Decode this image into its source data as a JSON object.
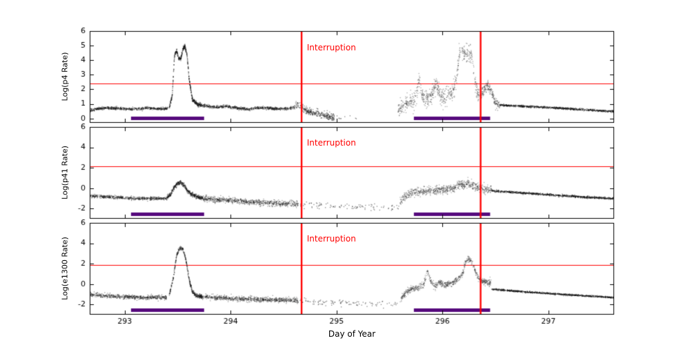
{
  "figure": {
    "xlabel": "Day of Year",
    "background": "#ffffff",
    "axis_color": "#000000",
    "point_color": "#0f0f0f",
    "accent_red": "#ff0000",
    "bar_color": "#560a7d"
  },
  "chart_data": [
    {
      "type": "scatter",
      "ylabel": "Log(p4 Rate)",
      "xlim": [
        292.67,
        297.62
      ],
      "ylim": [
        -0.3,
        6
      ],
      "xticks": [
        293,
        294,
        295,
        296,
        297
      ],
      "yticks": [
        0,
        1,
        2,
        3,
        4,
        5,
        6
      ],
      "hline": 2.4,
      "vlines": [
        294.67,
        296.36
      ],
      "annotation": {
        "text": "Interruption",
        "x": 294.72,
        "y": 4.8
      },
      "bars": [
        [
          293.06,
          293.75
        ],
        [
          295.73,
          296.45
        ]
      ],
      "series": [
        {
          "x": [
            292.67,
            292.74,
            292.82,
            292.9,
            292.98,
            293.06,
            293.14,
            293.22,
            293.3,
            293.38,
            293.42
          ],
          "y": [
            0.5,
            0.66,
            0.72,
            0.7,
            0.66,
            0.64,
            0.66,
            0.71,
            0.67,
            0.66,
            0.72
          ],
          "sigma": 0.045,
          "density": 2.5,
          "alpha": 0.5
        },
        {
          "x": [
            293.42,
            293.45,
            293.47,
            293.49,
            293.51,
            293.53,
            293.55,
            293.57,
            293.59,
            293.61,
            293.64,
            293.68,
            293.72
          ],
          "y": [
            0.75,
            1.6,
            4.3,
            4.65,
            4.15,
            4.05,
            4.8,
            4.95,
            4.3,
            2.6,
            1.3,
            1.0,
            0.9
          ],
          "sigma": 0.07,
          "density": 6,
          "alpha": 0.5
        },
        {
          "x": [
            293.72,
            293.84,
            293.96,
            294.06,
            294.16,
            294.26,
            294.36,
            294.46,
            294.56,
            294.6
          ],
          "y": [
            0.9,
            0.78,
            0.82,
            0.72,
            0.64,
            0.74,
            0.7,
            0.66,
            0.7,
            0.74
          ],
          "sigma": 0.05,
          "density": 2.5,
          "alpha": 0.5
        },
        {
          "x": [
            294.6,
            294.64,
            294.67,
            294.71,
            294.76,
            294.82,
            294.88,
            294.94,
            294.98
          ],
          "y": [
            0.76,
            0.95,
            0.85,
            0.55,
            0.42,
            0.35,
            0.22,
            0.1,
            0.04
          ],
          "sigma": 0.12,
          "density": 3,
          "alpha": 0.45
        },
        {
          "x": [
            295.0,
            295.2
          ],
          "y": [
            0.02,
            0.0
          ],
          "sigma": 0.05,
          "density": 0.15,
          "alpha": 0.5
        },
        {
          "x": [
            295.58,
            295.64,
            295.7,
            295.75,
            295.78,
            295.81,
            295.85,
            295.9,
            295.94,
            295.98,
            296.02,
            296.06,
            296.1,
            296.13,
            296.16,
            296.19,
            296.22,
            296.25,
            296.28,
            296.31,
            296.34
          ],
          "y": [
            0.6,
            0.95,
            1.15,
            1.3,
            2.75,
            1.45,
            1.35,
            1.6,
            2.45,
            1.5,
            1.45,
            1.6,
            1.75,
            2.6,
            4.5,
            4.75,
            4.35,
            4.6,
            4.2,
            2.4,
            1.6
          ],
          "sigma": 0.28,
          "density": 3,
          "alpha": 0.35
        },
        {
          "x": [
            296.34,
            296.38,
            296.42,
            296.46,
            296.5,
            296.54
          ],
          "y": [
            1.55,
            1.8,
            2.25,
            1.9,
            1.05,
            0.95
          ],
          "sigma": 0.18,
          "density": 3,
          "alpha": 0.4
        },
        {
          "x": [
            296.54,
            296.8,
            297.05,
            297.3,
            297.62
          ],
          "y": [
            0.92,
            0.82,
            0.73,
            0.62,
            0.48
          ],
          "sigma": 0.035,
          "density": 2.5,
          "alpha": 0.5
        }
      ]
    },
    {
      "type": "scatter",
      "ylabel": "Log(p41 Rate)",
      "xlim": [
        292.67,
        297.62
      ],
      "ylim": [
        -3,
        6
      ],
      "xticks": [
        293,
        294,
        295,
        296,
        297
      ],
      "yticks": [
        -2,
        0,
        2,
        4,
        6
      ],
      "hline": 2.15,
      "vlines": [
        294.67,
        296.36
      ],
      "annotation": {
        "text": "Interruption",
        "x": 294.72,
        "y": 4.4
      },
      "bars": [
        [
          293.06,
          293.75
        ],
        [
          295.73,
          296.45
        ]
      ],
      "series": [
        {
          "x": [
            292.67,
            292.85,
            293.03,
            293.21,
            293.4
          ],
          "y": [
            -0.75,
            -0.88,
            -0.96,
            -1.02,
            -1.0
          ],
          "sigma": 0.08,
          "density": 2.5,
          "alpha": 0.45
        },
        {
          "x": [
            293.4,
            293.44,
            293.47,
            293.5,
            293.53,
            293.56,
            293.59,
            293.63,
            293.68,
            293.74
          ],
          "y": [
            -0.95,
            -0.5,
            0.1,
            0.5,
            0.55,
            0.3,
            -0.2,
            -0.6,
            -0.85,
            -1.0
          ],
          "sigma": 0.1,
          "density": 5,
          "alpha": 0.45
        },
        {
          "x": [
            293.74,
            293.92,
            294.1,
            294.28,
            294.46,
            294.64
          ],
          "y": [
            -1.02,
            -1.16,
            -1.3,
            -1.42,
            -1.52,
            -1.58
          ],
          "sigma": 0.14,
          "density": 2.8,
          "alpha": 0.4
        },
        {
          "x": [
            294.64,
            294.94,
            295.24,
            295.6
          ],
          "y": [
            -1.62,
            -1.78,
            -1.88,
            -1.92
          ],
          "sigma": 0.16,
          "density": 0.35,
          "alpha": 0.5
        },
        {
          "x": [
            295.6,
            295.65,
            295.7,
            295.76,
            295.84,
            295.92,
            296.0,
            296.06,
            296.12,
            296.16,
            296.2,
            296.24,
            296.28,
            296.32,
            296.36,
            296.4,
            296.46
          ],
          "y": [
            -1.35,
            -0.75,
            -0.45,
            -0.33,
            -0.3,
            -0.26,
            -0.2,
            -0.15,
            0.0,
            0.35,
            0.25,
            0.5,
            0.35,
            0.15,
            -0.05,
            -0.12,
            -0.18
          ],
          "sigma": 0.2,
          "density": 3,
          "alpha": 0.35
        },
        {
          "x": [
            296.46,
            296.75,
            297.05,
            297.35,
            297.62
          ],
          "y": [
            -0.25,
            -0.48,
            -0.68,
            -0.88,
            -1.02
          ],
          "sigma": 0.05,
          "density": 2.5,
          "alpha": 0.5
        }
      ]
    },
    {
      "type": "scatter",
      "ylabel": "Log(e1300 Rate)",
      "xlim": [
        292.67,
        297.62
      ],
      "ylim": [
        -3,
        6
      ],
      "xticks": [
        293,
        294,
        295,
        296,
        297
      ],
      "yticks": [
        -2,
        0,
        2,
        4,
        6
      ],
      "hline": 1.9,
      "vlines": [
        294.67,
        296.36
      ],
      "annotation": {
        "text": "Interruption",
        "x": 294.72,
        "y": 4.4
      },
      "bars": [
        [
          293.06,
          293.75
        ],
        [
          295.73,
          296.45
        ]
      ],
      "series": [
        {
          "x": [
            292.67,
            292.85,
            293.03,
            293.21,
            293.4
          ],
          "y": [
            -1.05,
            -1.18,
            -1.27,
            -1.32,
            -1.3
          ],
          "sigma": 0.1,
          "density": 2.5,
          "alpha": 0.45
        },
        {
          "x": [
            293.42,
            293.46,
            293.49,
            293.52,
            293.55,
            293.58,
            293.61,
            293.64,
            293.68,
            293.73
          ],
          "y": [
            -1.1,
            0.6,
            2.8,
            3.5,
            3.45,
            2.3,
            0.4,
            -0.8,
            -1.15,
            -1.25
          ],
          "sigma": 0.1,
          "density": 5,
          "alpha": 0.45
        },
        {
          "x": [
            293.73,
            293.92,
            294.1,
            294.28,
            294.46,
            294.64
          ],
          "y": [
            -1.25,
            -1.36,
            -1.45,
            -1.52,
            -1.58,
            -1.62
          ],
          "sigma": 0.12,
          "density": 2.8,
          "alpha": 0.4
        },
        {
          "x": [
            294.64,
            294.94,
            295.24,
            295.6
          ],
          "y": [
            -1.66,
            -1.82,
            -1.9,
            -1.95
          ],
          "sigma": 0.14,
          "density": 0.35,
          "alpha": 0.5
        },
        {
          "x": [
            295.6,
            295.66,
            295.71,
            295.77,
            295.82,
            295.86,
            295.89,
            295.93,
            295.97,
            296.01,
            296.06,
            296.11,
            296.15,
            296.19,
            296.22,
            296.25,
            296.28,
            296.32,
            296.36,
            296.41,
            296.46
          ],
          "y": [
            -1.5,
            -0.75,
            -0.5,
            -0.38,
            -0.1,
            1.25,
            0.3,
            -0.25,
            0.25,
            -0.15,
            0.05,
            0.2,
            0.5,
            1.05,
            2.25,
            2.45,
            2.15,
            0.95,
            0.3,
            0.2,
            0.1
          ],
          "sigma": 0.16,
          "density": 3,
          "alpha": 0.35
        },
        {
          "x": [
            296.46,
            296.75,
            297.05,
            297.35,
            297.62
          ],
          "y": [
            -0.5,
            -0.74,
            -0.96,
            -1.16,
            -1.32
          ],
          "sigma": 0.04,
          "density": 2.5,
          "alpha": 0.5
        }
      ]
    }
  ]
}
